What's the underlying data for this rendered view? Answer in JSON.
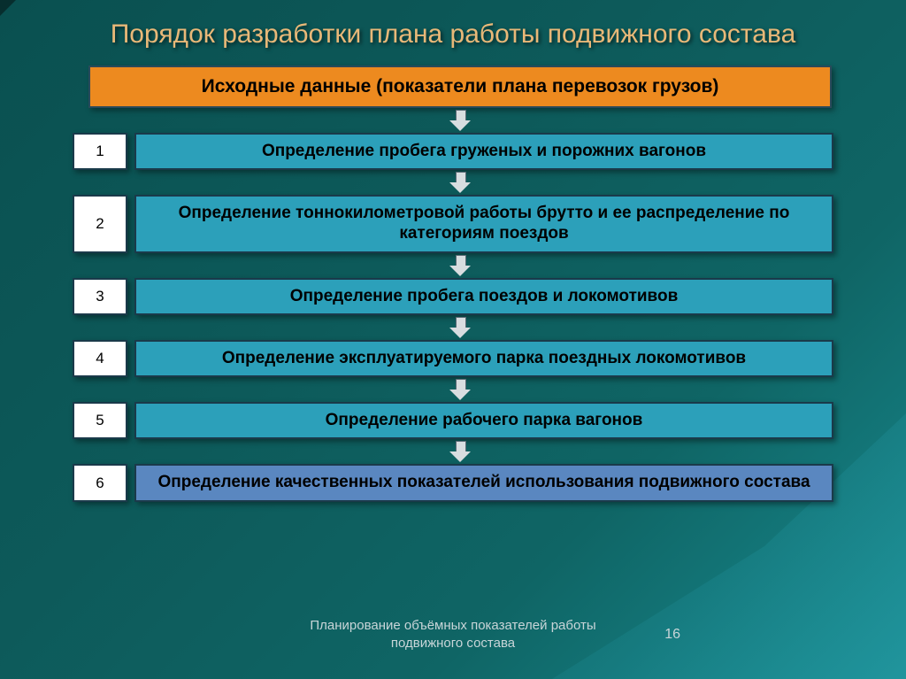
{
  "title": "Порядок разработки плана работы подвижного состава",
  "header_box": "Исходные данные (показатели плана перевозок грузов)",
  "steps": [
    {
      "num": "1",
      "text": "Определение пробега груженых и порожних вагонов",
      "multiline": false
    },
    {
      "num": "2",
      "text": "Определение тоннокилометровой работы брутто и ее распределение по категориям поездов",
      "multiline": true
    },
    {
      "num": "3",
      "text": "Определение пробега поездов и локомотивов",
      "multiline": false
    },
    {
      "num": "4",
      "text": "Определение эксплуатируемого парка поездных локомотивов",
      "multiline": true
    },
    {
      "num": "5",
      "text": "Определение рабочего парка вагонов",
      "multiline": false
    },
    {
      "num": "6",
      "text": "Определение качественных показателей использования подвижного состава",
      "multiline": true,
      "last": true
    }
  ],
  "footer_text": "Планирование объёмных показателей работы подвижного состава",
  "page_number": "16",
  "colors": {
    "title": "#e8b878",
    "header_bg": "#ed8a1f",
    "step_bg": "#2ca0ba",
    "last_step_bg": "#5a87c0",
    "num_bg": "#ffffff",
    "border": "#1a3a4a",
    "arrow": "#d8dde0"
  }
}
